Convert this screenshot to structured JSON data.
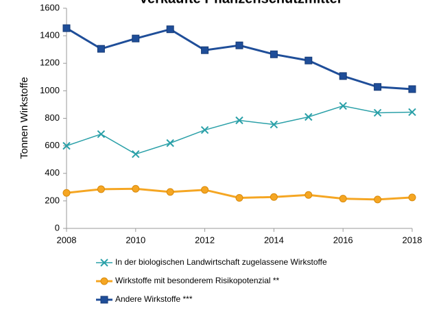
{
  "chart_data": {
    "type": "line",
    "title": "Verkaufte Pflanzenschutzmittel",
    "ylabel": "Tonnen Wirkstoffe",
    "x": [
      2008,
      2009,
      2010,
      2011,
      2012,
      2013,
      2014,
      2015,
      2016,
      2017,
      2018
    ],
    "xlim": [
      2008,
      2018
    ],
    "xticks": [
      2008,
      2010,
      2012,
      2014,
      2016,
      2018
    ],
    "ylim": [
      0,
      1600
    ],
    "yticks": [
      0,
      200,
      400,
      600,
      800,
      1000,
      1200,
      1400,
      1600
    ],
    "grid": false,
    "legend": "bottom",
    "series": [
      {
        "name": "In der biologischen Landwirtschaft zugelassene Wirkstoffe",
        "color": "#2aa0a8",
        "marker": "x",
        "values": [
          600,
          685,
          540,
          620,
          715,
          785,
          755,
          810,
          890,
          840,
          845
        ]
      },
      {
        "name": "Wirkstoffe mit besonderem Risikopotenzial **",
        "color": "#f5a623",
        "marker": "circle",
        "values": [
          258,
          285,
          288,
          265,
          280,
          222,
          228,
          243,
          216,
          210,
          225
        ]
      },
      {
        "name": "Andere Wirkstoffe ***",
        "color": "#1f4e99",
        "marker": "square",
        "values": [
          1455,
          1305,
          1380,
          1447,
          1295,
          1330,
          1265,
          1220,
          1107,
          1028,
          1012
        ]
      }
    ]
  }
}
